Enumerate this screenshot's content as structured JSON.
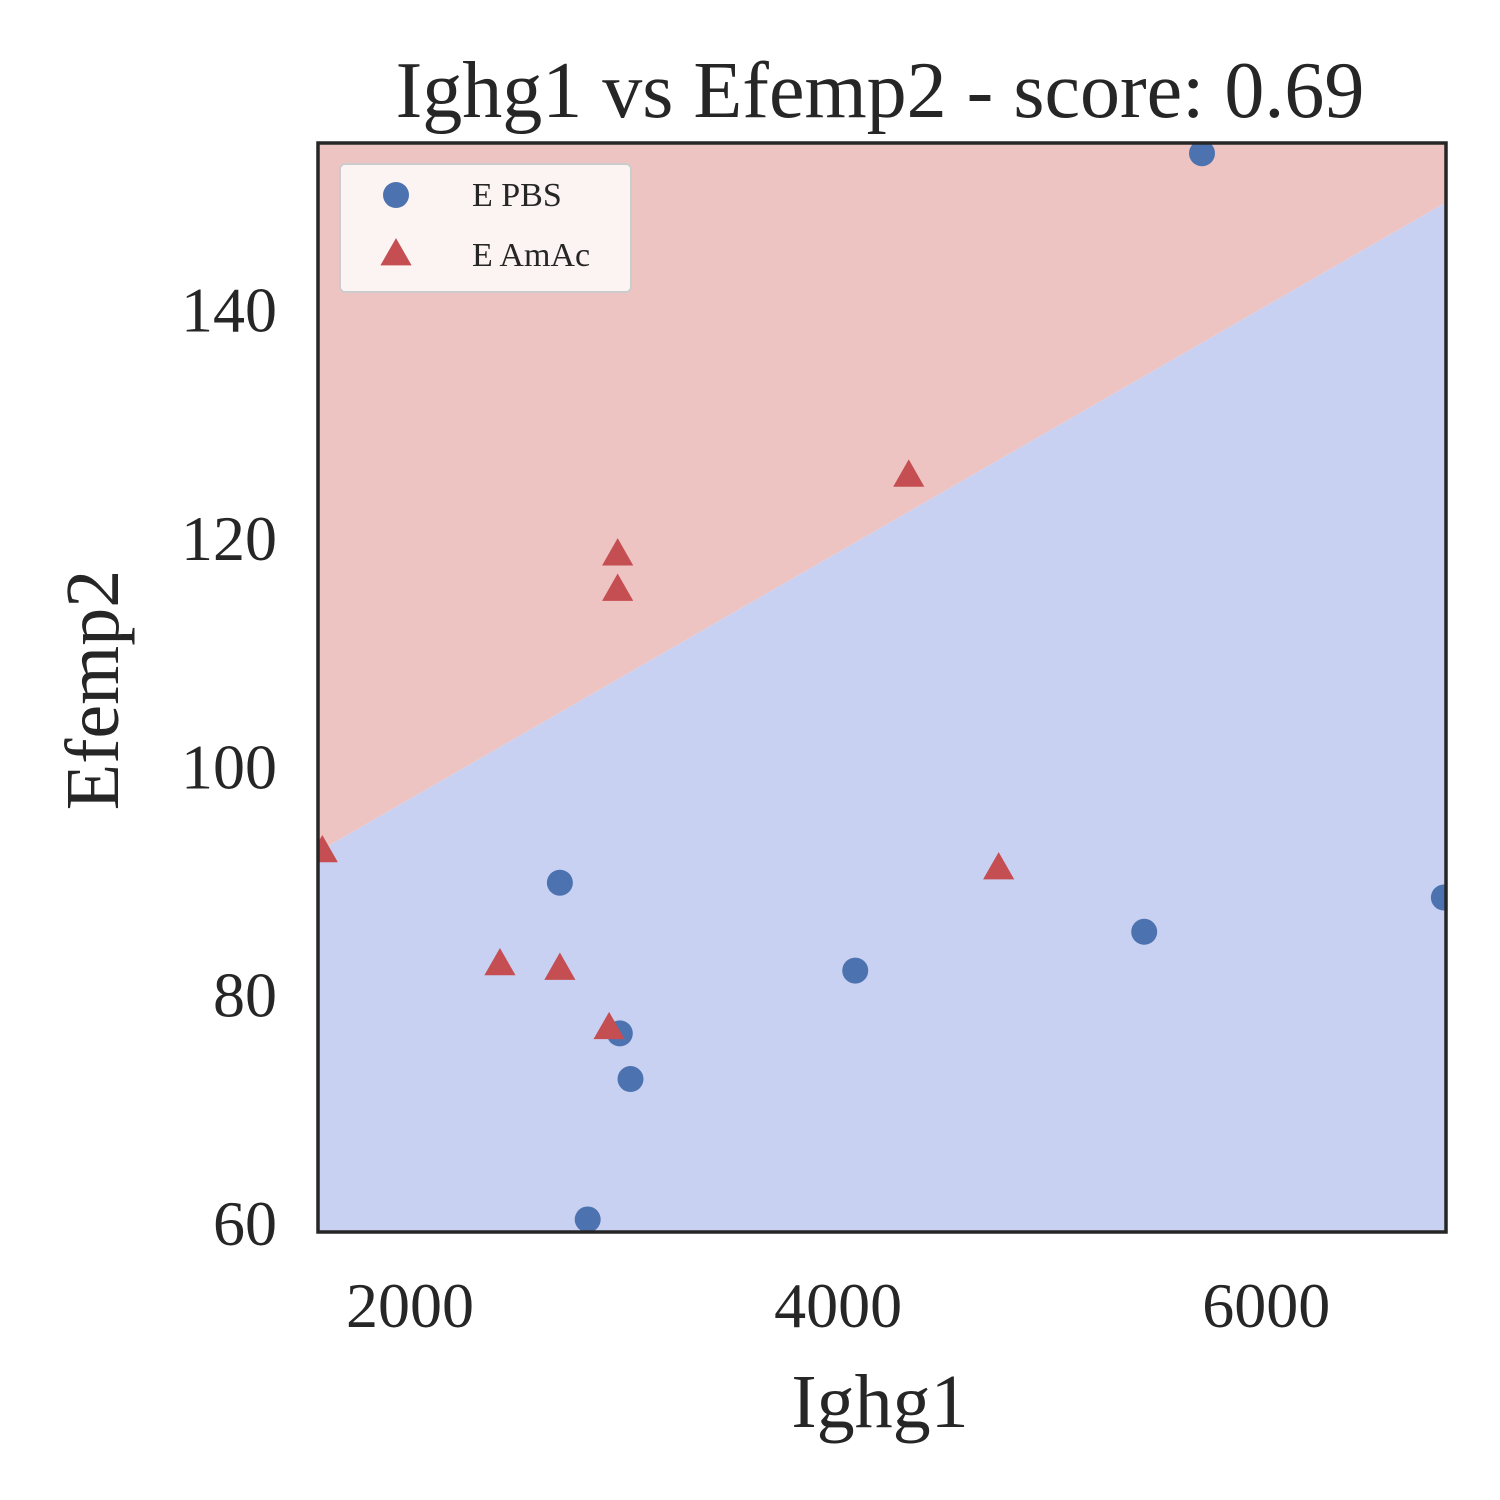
{
  "chart_data": {
    "type": "scatter",
    "title": "Ighg1 vs Efemp2 - score: 0.69",
    "xlabel": "Ighg1",
    "ylabel": "Efemp2",
    "xlim": [
      1570,
      6840
    ],
    "ylim": [
      59.2,
      154.6
    ],
    "xticks": [
      2000,
      4000,
      6000
    ],
    "yticks": [
      60,
      80,
      100,
      120,
      140
    ],
    "grid": false,
    "legend_position": "top-left",
    "decision_boundary": {
      "points": [
        [
          1570,
          92.5
        ],
        [
          6840,
          149.4
        ]
      ],
      "above_color": "#eec4c3",
      "below_color": "#c9d1f2"
    },
    "series": [
      {
        "name": "E PBS",
        "marker": "circle",
        "color": "#4c72b0",
        "points": [
          [
            5700,
            153.7
          ],
          [
            2700,
            89.8
          ],
          [
            4080,
            82.1
          ],
          [
            5430,
            85.5
          ],
          [
            6830,
            88.5
          ],
          [
            2980,
            76.6
          ],
          [
            3030,
            72.6
          ],
          [
            2830,
            60.3
          ]
        ]
      },
      {
        "name": "E AmAc",
        "marker": "triangle",
        "color": "#c44e52",
        "points": [
          [
            4330,
            125.4
          ],
          [
            2970,
            118.5
          ],
          [
            2970,
            115.4
          ],
          [
            1590,
            92.5
          ],
          [
            4750,
            91.0
          ],
          [
            2420,
            82.6
          ],
          [
            2700,
            82.2
          ],
          [
            2930,
            77.0
          ]
        ]
      }
    ]
  }
}
